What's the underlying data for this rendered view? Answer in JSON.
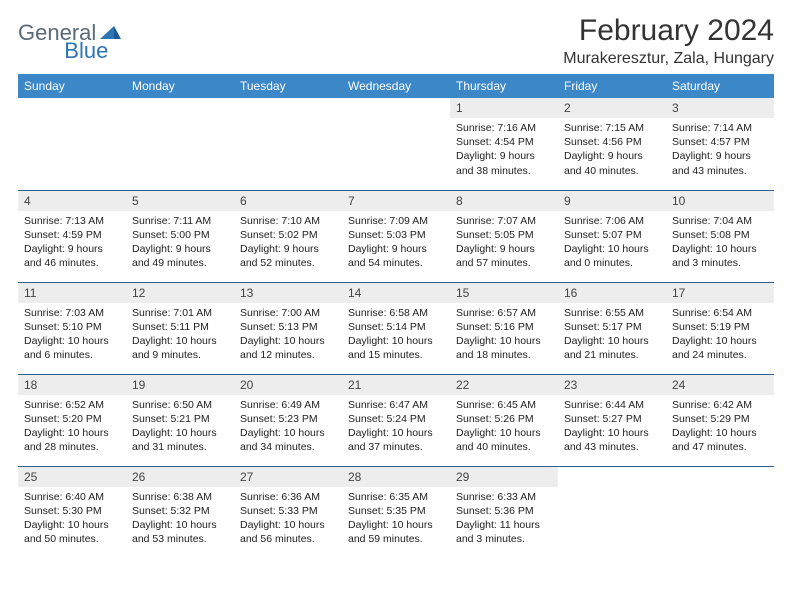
{
  "logo": {
    "part1": "General",
    "part2": "Blue"
  },
  "title": "February 2024",
  "location": "Murakeresztur, Zala, Hungary",
  "colors": {
    "header_bg": "#3b87c8",
    "header_fg": "#ffffff",
    "daynum_bg": "#ededed",
    "rule": "#2d5f8f",
    "logo_gray": "#5a6a78",
    "logo_blue": "#2d74b5"
  },
  "weekdays": [
    "Sunday",
    "Monday",
    "Tuesday",
    "Wednesday",
    "Thursday",
    "Friday",
    "Saturday"
  ],
  "weeks": [
    [
      null,
      null,
      null,
      null,
      {
        "n": "1",
        "sr": "7:16 AM",
        "ss": "4:54 PM",
        "dl": "9 hours and 38 minutes."
      },
      {
        "n": "2",
        "sr": "7:15 AM",
        "ss": "4:56 PM",
        "dl": "9 hours and 40 minutes."
      },
      {
        "n": "3",
        "sr": "7:14 AM",
        "ss": "4:57 PM",
        "dl": "9 hours and 43 minutes."
      }
    ],
    [
      {
        "n": "4",
        "sr": "7:13 AM",
        "ss": "4:59 PM",
        "dl": "9 hours and 46 minutes."
      },
      {
        "n": "5",
        "sr": "7:11 AM",
        "ss": "5:00 PM",
        "dl": "9 hours and 49 minutes."
      },
      {
        "n": "6",
        "sr": "7:10 AM",
        "ss": "5:02 PM",
        "dl": "9 hours and 52 minutes."
      },
      {
        "n": "7",
        "sr": "7:09 AM",
        "ss": "5:03 PM",
        "dl": "9 hours and 54 minutes."
      },
      {
        "n": "8",
        "sr": "7:07 AM",
        "ss": "5:05 PM",
        "dl": "9 hours and 57 minutes."
      },
      {
        "n": "9",
        "sr": "7:06 AM",
        "ss": "5:07 PM",
        "dl": "10 hours and 0 minutes."
      },
      {
        "n": "10",
        "sr": "7:04 AM",
        "ss": "5:08 PM",
        "dl": "10 hours and 3 minutes."
      }
    ],
    [
      {
        "n": "11",
        "sr": "7:03 AM",
        "ss": "5:10 PM",
        "dl": "10 hours and 6 minutes."
      },
      {
        "n": "12",
        "sr": "7:01 AM",
        "ss": "5:11 PM",
        "dl": "10 hours and 9 minutes."
      },
      {
        "n": "13",
        "sr": "7:00 AM",
        "ss": "5:13 PM",
        "dl": "10 hours and 12 minutes."
      },
      {
        "n": "14",
        "sr": "6:58 AM",
        "ss": "5:14 PM",
        "dl": "10 hours and 15 minutes."
      },
      {
        "n": "15",
        "sr": "6:57 AM",
        "ss": "5:16 PM",
        "dl": "10 hours and 18 minutes."
      },
      {
        "n": "16",
        "sr": "6:55 AM",
        "ss": "5:17 PM",
        "dl": "10 hours and 21 minutes."
      },
      {
        "n": "17",
        "sr": "6:54 AM",
        "ss": "5:19 PM",
        "dl": "10 hours and 24 minutes."
      }
    ],
    [
      {
        "n": "18",
        "sr": "6:52 AM",
        "ss": "5:20 PM",
        "dl": "10 hours and 28 minutes."
      },
      {
        "n": "19",
        "sr": "6:50 AM",
        "ss": "5:21 PM",
        "dl": "10 hours and 31 minutes."
      },
      {
        "n": "20",
        "sr": "6:49 AM",
        "ss": "5:23 PM",
        "dl": "10 hours and 34 minutes."
      },
      {
        "n": "21",
        "sr": "6:47 AM",
        "ss": "5:24 PM",
        "dl": "10 hours and 37 minutes."
      },
      {
        "n": "22",
        "sr": "6:45 AM",
        "ss": "5:26 PM",
        "dl": "10 hours and 40 minutes."
      },
      {
        "n": "23",
        "sr": "6:44 AM",
        "ss": "5:27 PM",
        "dl": "10 hours and 43 minutes."
      },
      {
        "n": "24",
        "sr": "6:42 AM",
        "ss": "5:29 PM",
        "dl": "10 hours and 47 minutes."
      }
    ],
    [
      {
        "n": "25",
        "sr": "6:40 AM",
        "ss": "5:30 PM",
        "dl": "10 hours and 50 minutes."
      },
      {
        "n": "26",
        "sr": "6:38 AM",
        "ss": "5:32 PM",
        "dl": "10 hours and 53 minutes."
      },
      {
        "n": "27",
        "sr": "6:36 AM",
        "ss": "5:33 PM",
        "dl": "10 hours and 56 minutes."
      },
      {
        "n": "28",
        "sr": "6:35 AM",
        "ss": "5:35 PM",
        "dl": "10 hours and 59 minutes."
      },
      {
        "n": "29",
        "sr": "6:33 AM",
        "ss": "5:36 PM",
        "dl": "11 hours and 3 minutes."
      },
      null,
      null
    ]
  ],
  "labels": {
    "sunrise": "Sunrise:",
    "sunset": "Sunset:",
    "daylight": "Daylight:"
  }
}
